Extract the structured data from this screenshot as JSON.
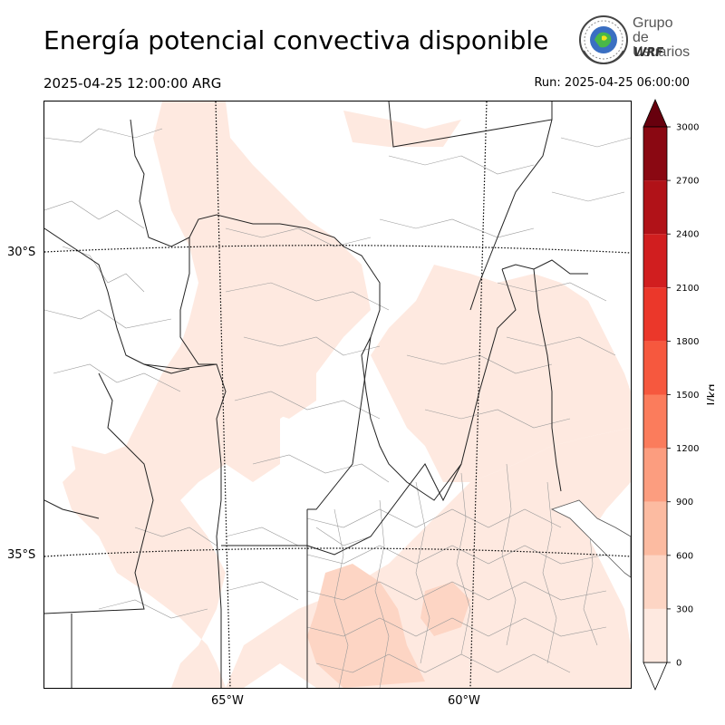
{
  "title": "Energía potencial convectiva disponible",
  "valid_time": "2025-04-25 12:00:00 ARG",
  "run_time": "Run: 2025-04-25 06:00:00",
  "logo": {
    "line1": "Grupo de",
    "line2": "Usuarios",
    "line3": "WRF"
  },
  "map": {
    "lat_labels": [
      "30°S",
      "35°S"
    ],
    "lon_labels": [
      "65°W",
      "60°W"
    ]
  },
  "colorbar": {
    "unit": "J/kg",
    "ticks": [
      "0",
      "300",
      "600",
      "900",
      "1200",
      "1500",
      "1800",
      "2100",
      "2400",
      "2700",
      "3000"
    ],
    "colors": [
      "#fee9e0",
      "#fdd5c4",
      "#fcbba1",
      "#fc9d7f",
      "#fb7c5c",
      "#f6583e",
      "#eb372a",
      "#d11e1f",
      "#b11218",
      "#8a0812",
      "#67000d"
    ],
    "extend": "both"
  }
}
